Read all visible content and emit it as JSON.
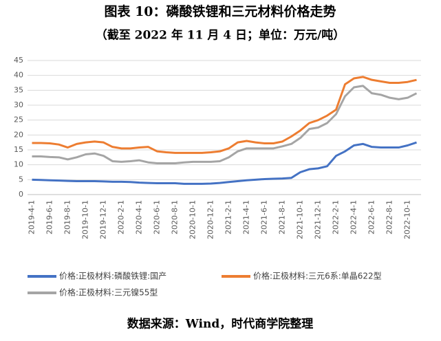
{
  "chart_data": {
    "type": "line",
    "title": "图表 10：磷酸铁锂和三元材料价格走势",
    "subtitle": "（截至 2022 年 11 月 4 日；单位：万元/吨）",
    "source": "数据来源：Wind，时代商学院整理",
    "categories": [
      "2019-4-1",
      null,
      "2019-6-1",
      null,
      "2019-8-1",
      null,
      "2019-10-1",
      null,
      "2019-12-1",
      null,
      "2020-2-1",
      null,
      "2020-4-1",
      null,
      "2020-6-1",
      null,
      "2020-8-1",
      null,
      "2020-10-1",
      null,
      "2020-12-1",
      null,
      "2021-2-1",
      null,
      "2021-4-1",
      null,
      "2021-6-1",
      null,
      "2021-8-1",
      null,
      "2021-10-1",
      null,
      "2021-12-1",
      null,
      "2022-2-1",
      null,
      "2022-4-1",
      null,
      "2022-6-1",
      null,
      "2022-8-1",
      null,
      "2022-10-1",
      null
    ],
    "series": [
      {
        "name": "价格:正极材料:磷酸铁锂:国产",
        "color": "#4472c4",
        "values": [
          5.0,
          4.9,
          4.8,
          4.7,
          4.6,
          4.5,
          4.5,
          4.5,
          4.4,
          4.3,
          4.3,
          4.2,
          4.0,
          3.9,
          3.8,
          3.8,
          3.8,
          3.6,
          3.6,
          3.6,
          3.7,
          3.9,
          4.2,
          4.5,
          4.8,
          5.0,
          5.2,
          5.3,
          5.4,
          5.6,
          7.5,
          8.5,
          8.8,
          9.5,
          13,
          14.5,
          16.5,
          17,
          16,
          15.8,
          15.8,
          15.8,
          16.5,
          17.5
        ]
      },
      {
        "name": "价格:正极材料:三元6系:单晶622型",
        "color": "#ed7d31",
        "values": [
          17.3,
          17.3,
          17.2,
          16.8,
          15.8,
          17,
          17.5,
          17.8,
          17.5,
          16,
          15.5,
          15.5,
          15.8,
          16,
          14.5,
          14.2,
          14,
          14,
          14,
          14,
          14.2,
          14.5,
          15.5,
          17.5,
          18,
          17.5,
          17.2,
          17.2,
          17.8,
          19.5,
          21.5,
          24,
          25,
          26.5,
          28.5,
          37,
          39,
          39.5,
          38.5,
          38,
          37.5,
          37.5,
          37.8,
          38.5
        ]
      },
      {
        "name": "价格:正极材料:三元镍55型",
        "color": "#a5a5a5",
        "values": [
          12.8,
          12.8,
          12.6,
          12.5,
          11.8,
          12.5,
          13.5,
          13.8,
          13.0,
          11.2,
          11.0,
          11.2,
          11.5,
          10.8,
          10.5,
          10.5,
          10.5,
          10.8,
          11.0,
          11.0,
          11.0,
          11.2,
          12.5,
          14.5,
          15.5,
          15.5,
          15.5,
          15.5,
          16.2,
          17,
          19,
          22,
          22.5,
          24,
          27,
          33,
          36,
          36.5,
          34,
          33.5,
          32.5,
          32,
          32.5,
          34
        ]
      }
    ],
    "ylim": [
      0,
      45
    ],
    "yticks": [
      0,
      5,
      10,
      15,
      20,
      25,
      30,
      35,
      40,
      45
    ],
    "grid": true
  }
}
